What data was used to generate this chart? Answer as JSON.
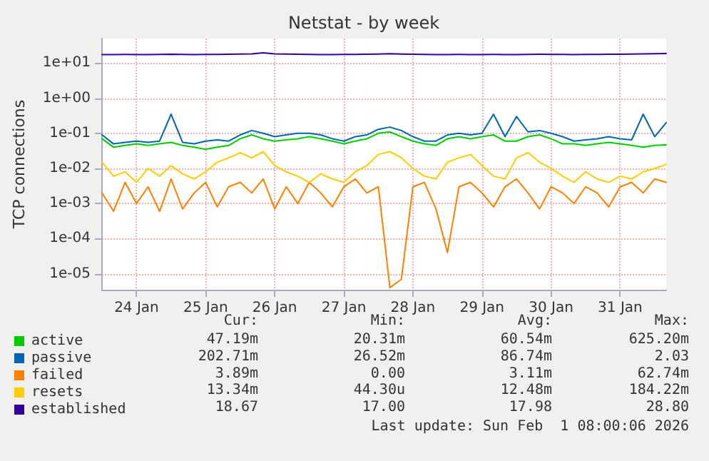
{
  "chart_data": {
    "type": "line",
    "title": "Netstat - by week",
    "ylabel": "TCP connections",
    "x": [
      "2026-01-24T00:00",
      "2026-01-24T04:00",
      "2026-01-24T08:00",
      "2026-01-24T12:00",
      "2026-01-24T16:00",
      "2026-01-24T20:00",
      "2026-01-25T00:00",
      "2026-01-25T04:00",
      "2026-01-25T08:00",
      "2026-01-25T12:00",
      "2026-01-25T16:00",
      "2026-01-25T20:00",
      "2026-01-26T00:00",
      "2026-01-26T04:00",
      "2026-01-26T08:00",
      "2026-01-26T12:00",
      "2026-01-26T16:00",
      "2026-01-26T20:00",
      "2026-01-27T00:00",
      "2026-01-27T04:00",
      "2026-01-27T08:00",
      "2026-01-27T12:00",
      "2026-01-27T16:00",
      "2026-01-27T20:00",
      "2026-01-28T00:00",
      "2026-01-28T04:00",
      "2026-01-28T08:00",
      "2026-01-28T12:00",
      "2026-01-28T16:00",
      "2026-01-28T20:00",
      "2026-01-29T00:00",
      "2026-01-29T04:00",
      "2026-01-29T08:00",
      "2026-01-29T12:00",
      "2026-01-29T16:00",
      "2026-01-29T20:00",
      "2026-01-30T00:00",
      "2026-01-30T04:00",
      "2026-01-30T08:00",
      "2026-01-30T12:00",
      "2026-01-30T16:00",
      "2026-01-30T20:00",
      "2026-01-31T00:00",
      "2026-01-31T04:00",
      "2026-01-31T08:00",
      "2026-01-31T12:00",
      "2026-01-31T16:00",
      "2026-01-31T20:00",
      "2026-02-01T00:00",
      "2026-02-01T04:00"
    ],
    "series": [
      {
        "name": "active",
        "color": "#00cc00",
        "values": [
          0.07,
          0.04,
          0.045,
          0.05,
          0.045,
          0.05,
          0.055,
          0.045,
          0.04,
          0.035,
          0.04,
          0.045,
          0.07,
          0.09,
          0.07,
          0.06,
          0.065,
          0.07,
          0.08,
          0.07,
          0.06,
          0.05,
          0.06,
          0.07,
          0.1,
          0.11,
          0.08,
          0.06,
          0.05,
          0.045,
          0.07,
          0.08,
          0.07,
          0.08,
          0.09,
          0.06,
          0.06,
          0.08,
          0.09,
          0.07,
          0.05,
          0.05,
          0.045,
          0.05,
          0.055,
          0.05,
          0.045,
          0.04,
          0.045,
          0.047
        ]
      },
      {
        "name": "passive",
        "color": "#0066b3",
        "values": [
          0.09,
          0.05,
          0.055,
          0.06,
          0.055,
          0.06,
          0.35,
          0.055,
          0.05,
          0.06,
          0.065,
          0.06,
          0.09,
          0.12,
          0.1,
          0.08,
          0.09,
          0.1,
          0.1,
          0.09,
          0.07,
          0.06,
          0.08,
          0.09,
          0.13,
          0.15,
          0.12,
          0.08,
          0.06,
          0.06,
          0.09,
          0.1,
          0.09,
          0.1,
          0.35,
          0.08,
          0.3,
          0.11,
          0.12,
          0.1,
          0.08,
          0.06,
          0.065,
          0.07,
          0.08,
          0.07,
          0.065,
          0.35,
          0.08,
          0.2
        ]
      },
      {
        "name": "failed",
        "color": "#ff8000",
        "values": [
          0.002,
          0.0006,
          0.004,
          0.001,
          0.003,
          0.0006,
          0.005,
          0.0007,
          0.002,
          0.004,
          0.0008,
          0.003,
          0.004,
          0.002,
          0.005,
          0.0007,
          0.003,
          0.001,
          0.004,
          0.002,
          0.0008,
          0.003,
          0.005,
          0.002,
          0.003,
          4e-06,
          7e-06,
          0.003,
          0.004,
          0.0007,
          4e-05,
          0.003,
          0.004,
          0.002,
          0.0008,
          0.003,
          0.005,
          0.002,
          0.0007,
          0.003,
          0.002,
          0.001,
          0.003,
          0.002,
          0.0008,
          0.003,
          0.004,
          0.002,
          0.005,
          0.004
        ]
      },
      {
        "name": "resets",
        "color": "#ffcc00",
        "values": [
          0.015,
          0.006,
          0.008,
          0.004,
          0.01,
          0.006,
          0.012,
          0.007,
          0.005,
          0.008,
          0.015,
          0.02,
          0.028,
          0.02,
          0.03,
          0.012,
          0.008,
          0.006,
          0.004,
          0.007,
          0.005,
          0.004,
          0.008,
          0.012,
          0.025,
          0.03,
          0.02,
          0.01,
          0.006,
          0.005,
          0.015,
          0.02,
          0.025,
          0.012,
          0.006,
          0.005,
          0.02,
          0.028,
          0.015,
          0.01,
          0.006,
          0.004,
          0.008,
          0.005,
          0.004,
          0.006,
          0.005,
          0.008,
          0.01,
          0.013
        ]
      },
      {
        "name": "established",
        "color": "#330099",
        "values": [
          17.5,
          17.5,
          17.6,
          17.5,
          17.5,
          17.6,
          17.8,
          17.6,
          17.5,
          17.6,
          17.7,
          17.8,
          18.0,
          18.2,
          19.5,
          18.3,
          18.0,
          17.8,
          17.6,
          17.5,
          17.5,
          17.6,
          17.7,
          17.8,
          18.0,
          18.4,
          18.0,
          17.8,
          17.6,
          17.5,
          17.5,
          17.6,
          17.5,
          17.5,
          17.6,
          17.5,
          17.5,
          17.6,
          17.8,
          17.7,
          17.6,
          17.5,
          17.6,
          17.7,
          17.8,
          17.9,
          18.0,
          18.2,
          18.5,
          18.7
        ]
      }
    ],
    "xlim": [
      "2026-01-24T00:00",
      "2026-02-01T04:00"
    ],
    "xticks": [
      {
        "value": "2026-01-24T12:00",
        "label": "24 Jan"
      },
      {
        "value": "2026-01-25T12:00",
        "label": "25 Jan"
      },
      {
        "value": "2026-01-26T12:00",
        "label": "26 Jan"
      },
      {
        "value": "2026-01-27T12:00",
        "label": "27 Jan"
      },
      {
        "value": "2026-01-28T12:00",
        "label": "28 Jan"
      },
      {
        "value": "2026-01-29T12:00",
        "label": "29 Jan"
      },
      {
        "value": "2026-01-30T12:00",
        "label": "30 Jan"
      },
      {
        "value": "2026-01-31T12:00",
        "label": "31 Jan"
      }
    ],
    "ylim": [
      3.5e-06,
      50
    ],
    "yticks": [
      {
        "value": 1e-05,
        "label": "1e-05"
      },
      {
        "value": 0.0001,
        "label": "1e-04"
      },
      {
        "value": 0.001,
        "label": "1e-03"
      },
      {
        "value": 0.01,
        "label": "1e-02"
      },
      {
        "value": 0.1,
        "label": "1e-01"
      },
      {
        "value": 1,
        "label": "1e+00"
      },
      {
        "value": 10,
        "label": "1e+01"
      }
    ],
    "log": "y",
    "grid": true,
    "legend": "bottom left",
    "marker": "none",
    "line_style": "solid",
    "annotations": [
      "Cur:",
      "Min:",
      "Avg:",
      "Max:",
      "47.19m",
      "20.31m",
      "60.54m",
      "625.20m",
      "202.71m",
      "26.52m",
      "86.74m",
      "2.03",
      "3.89m",
      "0.00",
      "3.11m",
      "62.74m",
      "13.34m",
      "44.30u",
      "12.48m",
      "184.22m",
      "18.67",
      "17.00",
      "17.98",
      "28.80",
      "Last update: Sun Feb  1 08:00:06 2026"
    ]
  }
}
